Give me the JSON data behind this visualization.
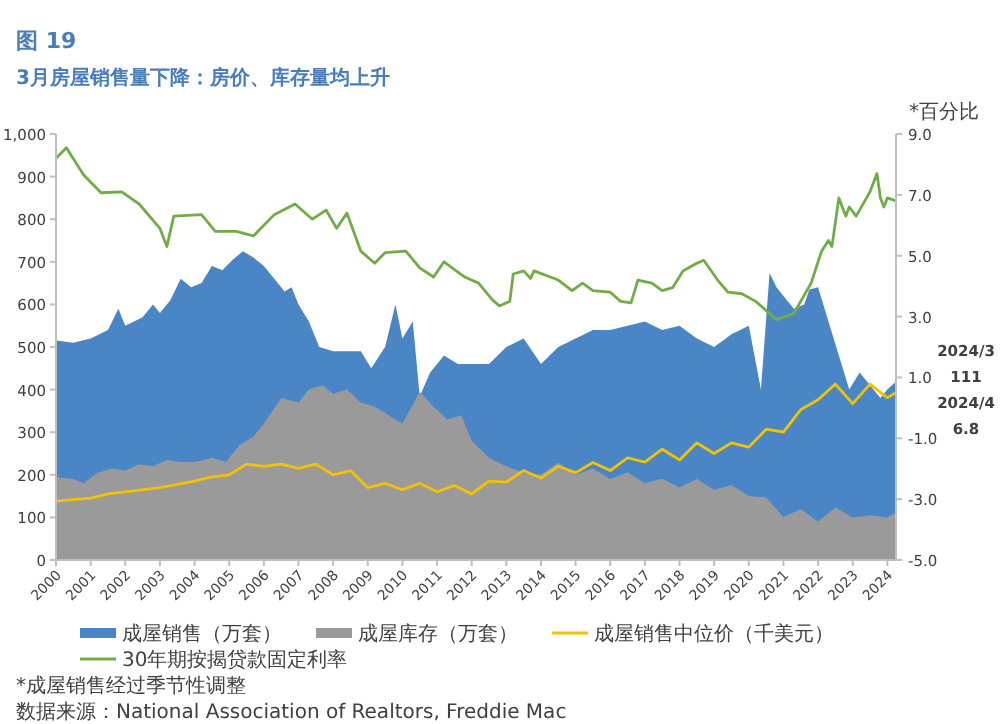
{
  "chart_data": {
    "type": "area",
    "title": "图 19",
    "subtitle": "3月房屋销售量下降：房价、库存量均上升",
    "y2label": "*百分比",
    "xlim": [
      2000,
      2024.25
    ],
    "xticks": [
      2000,
      2001,
      2002,
      2003,
      2004,
      2005,
      2006,
      2007,
      2008,
      2009,
      2010,
      2011,
      2012,
      2013,
      2014,
      2015,
      2016,
      2017,
      2018,
      2019,
      2020,
      2021,
      2022,
      2023,
      2024
    ],
    "ylim": [
      0,
      1000
    ],
    "yticks": [
      0,
      100,
      200,
      300,
      400,
      500,
      600,
      700,
      800,
      900,
      {
        "value": 1000,
        "label": "1,000"
      }
    ],
    "y2lim": [
      -5,
      9
    ],
    "y2ticks": [
      {
        "value": -5,
        "label": "-5.0"
      },
      {
        "value": -3,
        "label": "-3.0"
      },
      {
        "value": -1,
        "label": "-1.0"
      },
      {
        "value": 1,
        "label": "1.0"
      },
      {
        "value": 3,
        "label": "3.0"
      },
      {
        "value": 5,
        "label": "5.0"
      },
      {
        "value": 7,
        "label": "7.0"
      },
      {
        "value": 9,
        "label": "9.0"
      }
    ],
    "legend": "bottom",
    "series": [
      {
        "name": "成屋销售（万套）",
        "color": "#4a86c5",
        "x": [
          2000,
          2000.5,
          2001,
          2001.5,
          2001.8,
          2002,
          2002.5,
          2002.8,
          2003,
          2003.3,
          2003.6,
          2003.9,
          2004.2,
          2004.5,
          2004.8,
          2005.1,
          2005.4,
          2005.7,
          2006,
          2006.3,
          2006.6,
          2006.8,
          2007,
          2007.3,
          2007.6,
          2008,
          2008.4,
          2008.8,
          2009.1,
          2009.5,
          2009.8,
          2010,
          2010.3,
          2010.5,
          2010.8,
          2011.2,
          2011.6,
          2012,
          2012.5,
          2013,
          2013.5,
          2014,
          2014.5,
          2015,
          2015.5,
          2016,
          2016.5,
          2017,
          2017.5,
          2018,
          2018.5,
          2019,
          2019.5,
          2020,
          2020.35,
          2020.6,
          2020.8,
          2021,
          2021.3,
          2021.6,
          2021.75,
          2022,
          2022.3,
          2022.6,
          2022.9,
          2023.2,
          2023.5,
          2023.8,
          2024,
          2024.25
        ],
        "values": [
          515,
          510,
          520,
          540,
          590,
          550,
          570,
          600,
          580,
          610,
          660,
          640,
          650,
          690,
          680,
          705,
          725,
          710,
          690,
          660,
          630,
          640,
          600,
          560,
          500,
          490,
          490,
          490,
          450,
          500,
          600,
          520,
          560,
          384,
          440,
          480,
          460,
          460,
          460,
          500,
          520,
          460,
          500,
          520,
          540,
          540,
          550,
          560,
          540,
          550,
          520,
          500,
          530,
          550,
          400,
          674,
          640,
          620,
          590,
          600,
          635,
          640,
          560,
          480,
          400,
          440,
          410,
          380,
          400,
          419
        ]
      },
      {
        "name": "成屋库存（万套）",
        "color": "#9a9a9a",
        "x": [
          2000,
          2000.5,
          2000.8,
          2001.2,
          2001.6,
          2002,
          2002.4,
          2002.8,
          2003.2,
          2003.6,
          2004,
          2004.5,
          2004.9,
          2005.3,
          2005.7,
          2006,
          2006.5,
          2007,
          2007.3,
          2007.7,
          2008,
          2008.4,
          2008.8,
          2009.2,
          2009.6,
          2010,
          2010.5,
          2010.9,
          2011.3,
          2011.7,
          2012,
          2012.5,
          2013,
          2013.5,
          2014,
          2014.5,
          2015,
          2015.5,
          2016,
          2016.5,
          2017,
          2017.5,
          2018,
          2018.5,
          2019,
          2019.5,
          2020,
          2020.5,
          2021,
          2021.5,
          2022,
          2022.5,
          2023,
          2023.5,
          2024,
          2024.25
        ],
        "values": [
          195,
          190,
          180,
          205,
          215,
          210,
          225,
          220,
          235,
          230,
          230,
          240,
          230,
          270,
          290,
          320,
          380,
          370,
          400,
          410,
          390,
          400,
          370,
          360,
          340,
          320,
          395,
          360,
          330,
          340,
          280,
          240,
          220,
          205,
          200,
          229,
          200,
          215,
          190,
          206,
          180,
          191,
          170,
          190,
          165,
          176,
          150,
          147,
          101,
          120,
          90,
          124,
          100,
          105,
          100,
          111
        ]
      },
      {
        "name": "成屋销售中位价（千美元）",
        "type": "line",
        "color": "#f2c200",
        "x": [
          2000,
          2001,
          2001.5,
          2002,
          2003,
          2004,
          2004.5,
          2005,
          2005.5,
          2006,
          2006.5,
          2007,
          2007.5,
          2008,
          2008.5,
          2009,
          2009.5,
          2010,
          2010.5,
          2011,
          2011.5,
          2012,
          2012.5,
          2013,
          2013.5,
          2014,
          2014.5,
          2015,
          2015.5,
          2016,
          2016.5,
          2017,
          2017.5,
          2018,
          2018.5,
          2019,
          2019.5,
          2020,
          2020.5,
          2021,
          2021.5,
          2022,
          2022.5,
          2023,
          2023.5,
          2024,
          2024.25
        ],
        "values": [
          138,
          145,
          155,
          160,
          170,
          185,
          195,
          200,
          225,
          220,
          225,
          215,
          225,
          200,
          210,
          170,
          180,
          165,
          180,
          160,
          175,
          155,
          185,
          183,
          210,
          192,
          220,
          205,
          229,
          210,
          240,
          230,
          260,
          235,
          275,
          250,
          275,
          265,
          307,
          300,
          353,
          376,
          413,
          367,
          413,
          381,
          393
        ]
      },
      {
        "name": "30年期按揭贷款固定利率",
        "type": "line",
        "axis": "y2",
        "color": "#70ad47",
        "x": [
          2000,
          2000.3,
          2000.8,
          2001.3,
          2001.9,
          2002.4,
          2003,
          2003.2,
          2003.4,
          2004.2,
          2004.6,
          2005.2,
          2005.7,
          2006.3,
          2006.9,
          2007.4,
          2007.8,
          2008.1,
          2008.4,
          2008.8,
          2009.2,
          2009.5,
          2010.1,
          2010.5,
          2010.9,
          2011.2,
          2011.8,
          2012.2,
          2012.6,
          2012.8,
          2013.1,
          2013.2,
          2013.5,
          2013.7,
          2013.8,
          2014.5,
          2014.9,
          2015.2,
          2015.5,
          2016,
          2016.3,
          2016.6,
          2016.8,
          2017.2,
          2017.5,
          2017.8,
          2018.1,
          2018.5,
          2018.7,
          2019.1,
          2019.4,
          2019.8,
          2020.2,
          2020.8,
          2021.3,
          2021.8,
          2022.1,
          2022.3,
          2022.4,
          2022.6,
          2022.8,
          2022.9,
          2023.1,
          2023.4,
          2023.5,
          2023.7,
          2023.8,
          2023.9,
          2024,
          2024.25
        ],
        "values": [
          8.2,
          8.55,
          7.65,
          7.07,
          7.1,
          6.7,
          5.9,
          5.3,
          6.3,
          6.35,
          5.8,
          5.8,
          5.65,
          6.35,
          6.7,
          6.2,
          6.5,
          5.9,
          6.4,
          5.15,
          4.75,
          5.1,
          5.15,
          4.6,
          4.3,
          4.8,
          4.3,
          4.1,
          3.55,
          3.35,
          3.5,
          4.4,
          4.5,
          4.25,
          4.5,
          4.2,
          3.85,
          4.1,
          3.85,
          3.8,
          3.5,
          3.45,
          4.2,
          4.1,
          3.85,
          3.95,
          4.5,
          4.75,
          4.85,
          4.2,
          3.8,
          3.75,
          3.5,
          2.9,
          3.1,
          4.1,
          5.15,
          5.5,
          5.3,
          6.9,
          6.3,
          6.6,
          6.3,
          6.9,
          7.1,
          7.7,
          6.9,
          6.6,
          6.9,
          6.8
        ]
      }
    ],
    "annotations": [
      "*成屋销售经过季节性调整",
      "数据来源：National Association of Realtors, Freddie Mac",
      "2024/3",
      "111",
      "2024/4",
      "6.8"
    ]
  }
}
